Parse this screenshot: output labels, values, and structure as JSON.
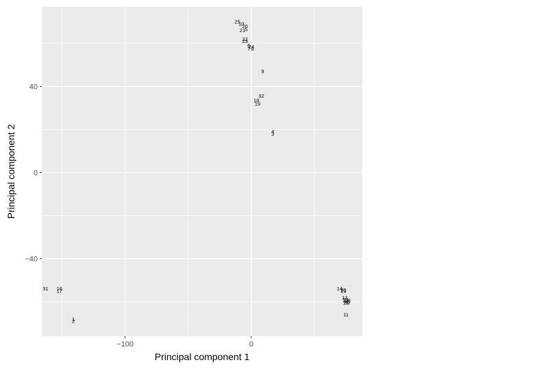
{
  "chart_data": {
    "type": "scatter",
    "title": "",
    "xlabel": "Principal component 1",
    "ylabel": "Principal component 2",
    "xlim": [
      -166,
      88
    ],
    "ylim": [
      -76,
      77
    ],
    "x_ticks": [
      -100,
      0
    ],
    "x_tick_labels": [
      "−100",
      "0"
    ],
    "y_ticks": [
      -40,
      0,
      40
    ],
    "y_tick_labels": [
      "−40",
      "0",
      "40"
    ],
    "grid": true,
    "points": [
      {
        "label": "25",
        "x": -11,
        "y": 70
      },
      {
        "label": "10",
        "x": -8,
        "y": 69
      },
      {
        "label": "20",
        "x": -5,
        "y": 68
      },
      {
        "label": "21",
        "x": -7,
        "y": 66
      },
      {
        "label": "5",
        "x": -4,
        "y": 66.5
      },
      {
        "label": "22",
        "x": -5,
        "y": 62
      },
      {
        "label": "23",
        "x": -5,
        "y": 61
      },
      {
        "label": "6",
        "x": -2,
        "y": 59
      },
      {
        "label": "24",
        "x": 0,
        "y": 58.5
      },
      {
        "label": "7",
        "x": -2,
        "y": 57.5
      },
      {
        "label": "8",
        "x": 1,
        "y": 57.5
      },
      {
        "label": "9",
        "x": 9,
        "y": 47
      },
      {
        "label": "32",
        "x": 8,
        "y": 35.5
      },
      {
        "label": "18",
        "x": 4,
        "y": 33.5
      },
      {
        "label": "19",
        "x": 5,
        "y": 32
      },
      {
        "label": "4",
        "x": 17,
        "y": 19
      },
      {
        "label": "3",
        "x": 17,
        "y": 18
      },
      {
        "label": "31",
        "x": -163,
        "y": -54
      },
      {
        "label": "16",
        "x": -152,
        "y": -54
      },
      {
        "label": "17",
        "x": -152,
        "y": -55
      },
      {
        "label": "1",
        "x": -141,
        "y": -68
      },
      {
        "label": "2",
        "x": -141,
        "y": -69
      },
      {
        "label": "14",
        "x": 70,
        "y": -54
      },
      {
        "label": "26",
        "x": 73,
        "y": -54.5
      },
      {
        "label": "29",
        "x": 73,
        "y": -55
      },
      {
        "label": "12",
        "x": 74,
        "y": -58
      },
      {
        "label": "13",
        "x": 74.5,
        "y": -59
      },
      {
        "label": "27",
        "x": 75,
        "y": -59.5
      },
      {
        "label": "28",
        "x": 76.5,
        "y": -59.5
      },
      {
        "label": "15",
        "x": 75,
        "y": -60.5
      },
      {
        "label": "30",
        "x": 76,
        "y": -60.5
      },
      {
        "label": "11",
        "x": 75,
        "y": -66
      }
    ]
  }
}
